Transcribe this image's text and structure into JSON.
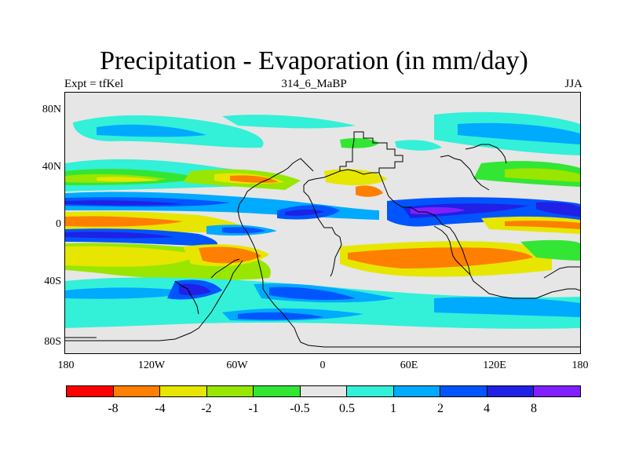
{
  "header": {
    "title": "Precipitation - Evaporation (in mm/day)",
    "left": "Expt = tfKel",
    "center": "314_6_MaBP",
    "right": "JJA"
  },
  "map": {
    "y_ticks": [
      "80N",
      "40N",
      "0",
      "40S",
      "80S"
    ],
    "x_ticks": [
      "180",
      "120W",
      "60W",
      "0",
      "60E",
      "120E",
      "180"
    ],
    "background_color": "#e6e6e6"
  },
  "colorbar": {
    "colors": [
      "#ff0000",
      "#ff7f00",
      "#e6e600",
      "#99e600",
      "#33e633",
      "#e6e6e6",
      "#33f0d8",
      "#00aaff",
      "#0055ff",
      "#2020e6",
      "#8020ff"
    ],
    "labels": [
      "-8",
      "-4",
      "-2",
      "-1",
      "-0.5",
      "0.5",
      "1",
      "2",
      "4",
      "8"
    ]
  }
}
